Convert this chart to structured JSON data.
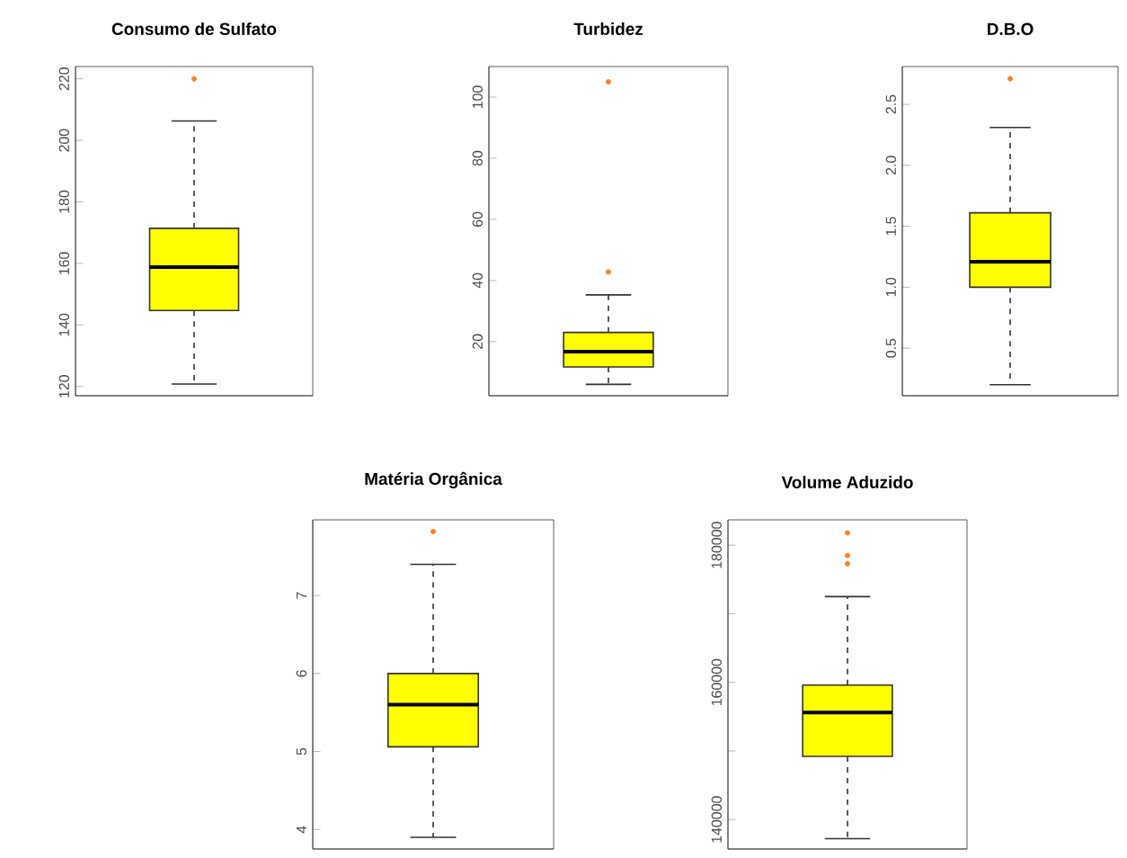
{
  "chart_data": [
    {
      "type": "box",
      "title": "Consumo de Sulfato",
      "categories": [
        null
      ],
      "color": "#ffff00",
      "ylim": [
        117,
        224
      ],
      "yticks": [
        120,
        140,
        160,
        180,
        200,
        220
      ],
      "grid": false,
      "boxes": [
        {
          "low": 120.8,
          "q1": 144.7,
          "median": 158.8,
          "q3": 171.4,
          "high": 206.3,
          "outliers": [
            220
          ]
        }
      ]
    },
    {
      "type": "box",
      "title": "Turbidez",
      "categories": [
        null
      ],
      "color": "#ffff00",
      "ylim": [
        2.3,
        110
      ],
      "yticks": [
        20,
        40,
        60,
        80,
        100
      ],
      "grid": false,
      "boxes": [
        {
          "low": 6,
          "q1": 11.7,
          "median": 16.7,
          "q3": 23,
          "high": 35.3,
          "outliers": [
            42.8,
            105
          ]
        }
      ]
    },
    {
      "type": "box",
      "title": "D.B.O",
      "categories": [
        null
      ],
      "color": "#ffff00",
      "ylim": [
        0.11,
        2.81
      ],
      "yticks": [
        0.5,
        {
          "value": 1.0,
          "label": "1.0"
        },
        1.5,
        {
          "value": 2.0,
          "label": "2.0"
        },
        2.5
      ],
      "grid": false,
      "boxes": [
        {
          "low": 0.2,
          "q1": 1.0,
          "median": 1.21,
          "q3": 1.61,
          "high": 2.31,
          "outliers": [
            2.71
          ]
        }
      ]
    },
    {
      "type": "box",
      "title": "Matéria Orgânica",
      "categories": [
        null
      ],
      "color": "#ffff00",
      "ylim": [
        3.75,
        7.97
      ],
      "yticks": [
        4,
        5,
        6,
        7
      ],
      "grid": false,
      "boxes": [
        {
          "low": 3.9,
          "q1": 5.06,
          "median": 5.6,
          "q3": 6.0,
          "high": 7.4,
          "outliers": [
            7.82
          ]
        }
      ]
    },
    {
      "type": "box",
      "title": "Volume Aduzido",
      "categories": [
        null
      ],
      "color": "#ffff00",
      "ylim": [
        135700,
        183700
      ],
      "yticks": [
        140000,
        {
          "value": 150000,
          "label": null
        },
        160000,
        {
          "value": 170000,
          "label": null
        },
        180000
      ],
      "grid": false,
      "boxes": [
        {
          "low": 137200,
          "q1": 149200,
          "median": 155600,
          "q3": 159600,
          "high": 172500,
          "outliers": [
            177300,
            178500,
            181800
          ]
        }
      ]
    }
  ]
}
